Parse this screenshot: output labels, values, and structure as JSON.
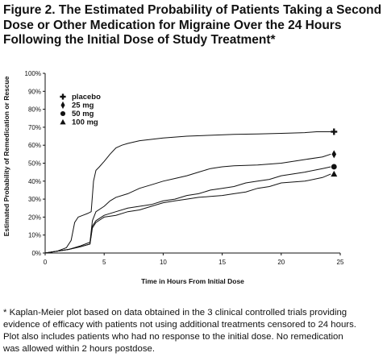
{
  "figure": {
    "title_lines": [
      "Figure 2. The Estimated Probability of Patients Taking a Second",
      "Dose or Other Medication for Migraine Over the 24 Hours",
      "Following the Initial Dose of Study Treatment*"
    ],
    "footnote_lines": [
      "* Kaplan-Meier plot based on data obtained in the 3 clinical controlled trials providing",
      "evidence of efficacy with patients not using additional treatments censored to 24 hours.",
      "Plot also includes patients who had no response to the initial dose. No remedication",
      "was allowed within 2 hours postdose."
    ]
  },
  "chart_data": {
    "type": "line",
    "xlabel": "Time in Hours From Initial Dose",
    "ylabel": "Estimated Probability of Remedication or Rescue",
    "xlim": [
      0,
      25
    ],
    "ylim": [
      0,
      100
    ],
    "xticks": [
      0,
      5,
      10,
      15,
      20,
      25
    ],
    "yticks": [
      0,
      10,
      20,
      30,
      40,
      50,
      60,
      70,
      80,
      90,
      100
    ],
    "ytick_suffix": "%",
    "grid": false,
    "legend_position": "top-left",
    "series": [
      {
        "name": "placebo",
        "marker": "plus",
        "x": [
          0,
          1,
          1.8,
          2.2,
          2.5,
          2.8,
          3.2,
          3.6,
          3.9,
          4.1,
          4.3,
          4.6,
          5.0,
          5.5,
          6.0,
          6.5,
          7.0,
          8.0,
          10.0,
          12.0,
          14.0,
          16.0,
          18.0,
          20.0,
          22.0,
          23.0,
          24.2
        ],
        "y": [
          0,
          1,
          3,
          7,
          17,
          20,
          21,
          22,
          23,
          40,
          46,
          48,
          51,
          55,
          58.5,
          60,
          61,
          62.5,
          64,
          65,
          65.5,
          66,
          66.3,
          66.6,
          67,
          67.5,
          67.5
        ]
      },
      {
        "name": "25 mg",
        "marker": "diamond",
        "x": [
          0,
          1,
          2,
          3,
          3.8,
          4.0,
          4.3,
          5.0,
          5.5,
          6.0,
          7.0,
          8.0,
          9.0,
          10.0,
          11.0,
          12.0,
          13.0,
          14.0,
          15.0,
          16.0,
          18.0,
          20.0,
          22.0,
          23.5,
          24.2
        ],
        "y": [
          0,
          1,
          2,
          4,
          6,
          18,
          23,
          26,
          29,
          31,
          33,
          36,
          38,
          40,
          41.5,
          43,
          45,
          47,
          48,
          48.5,
          49,
          50,
          52,
          53.5,
          55
        ]
      },
      {
        "name": "50 mg",
        "marker": "circle",
        "x": [
          0,
          1,
          2,
          3,
          3.8,
          4.0,
          4.3,
          5.0,
          6.0,
          7.0,
          8.0,
          9.0,
          10.0,
          11.0,
          12.0,
          13.0,
          14.0,
          15.0,
          16.0,
          17.0,
          18.0,
          19.0,
          20.0,
          22.0,
          23.5,
          24.2
        ],
        "y": [
          0,
          1,
          2,
          3.5,
          5,
          15,
          18,
          21,
          23,
          25,
          26,
          27,
          29,
          30,
          32,
          33,
          35,
          36,
          37,
          39,
          40,
          41,
          43,
          45,
          47,
          48
        ]
      },
      {
        "name": "100 mg",
        "marker": "triangle",
        "x": [
          0,
          1,
          2,
          3,
          3.8,
          4.0,
          4.3,
          5.0,
          6.0,
          7.0,
          8.0,
          9.0,
          10.0,
          11.0,
          12.0,
          13.0,
          14.0,
          15.0,
          16.0,
          17.0,
          18.0,
          19.0,
          20.0,
          22.0,
          23.5,
          24.2
        ],
        "y": [
          0,
          1,
          2,
          3.5,
          5,
          14,
          17,
          20,
          21,
          23,
          24,
          26,
          28,
          29,
          30,
          31,
          31.5,
          32,
          33,
          34,
          36,
          37,
          39,
          40,
          42,
          44
        ]
      }
    ]
  }
}
